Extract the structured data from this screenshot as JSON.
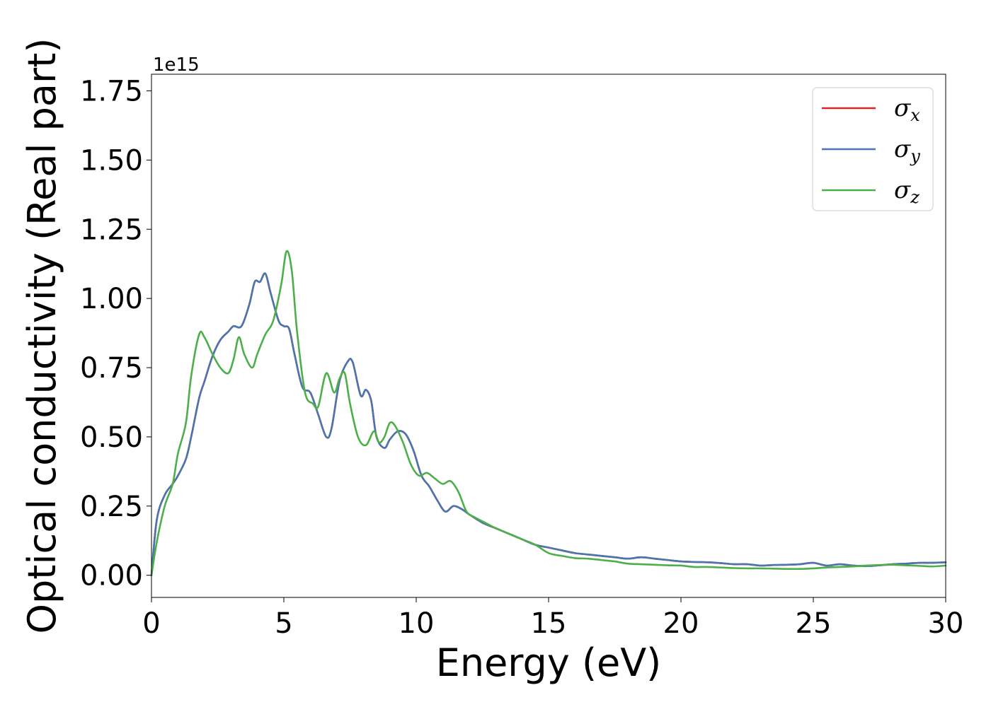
{
  "chart_data": {
    "type": "line",
    "xlabel": "Energy (eV)",
    "ylabel": "Optical conductivity (Real part)",
    "y_offset_text": "1e15",
    "xlim": [
      0,
      30
    ],
    "ylim": [
      -0.08,
      1.81
    ],
    "x_ticks": [
      0,
      5,
      10,
      15,
      20,
      25,
      30
    ],
    "x_tick_labels": [
      "0",
      "5",
      "10",
      "15",
      "20",
      "25",
      "30"
    ],
    "y_ticks": [
      0.0,
      0.25,
      0.5,
      0.75,
      1.0,
      1.25,
      1.5,
      1.75
    ],
    "y_tick_labels": [
      "0.00",
      "0.25",
      "0.50",
      "0.75",
      "1.00",
      "1.25",
      "1.50",
      "1.75"
    ],
    "grid": false,
    "legend_position": "top-right",
    "series": [
      {
        "name": "σx",
        "legend_symbol": "σ",
        "legend_subscript": "x",
        "color": "#d62728",
        "x": [
          0,
          0.2,
          0.5,
          0.8,
          1.0,
          1.3,
          1.5,
          1.8,
          2.0,
          2.3,
          2.6,
          2.9,
          3.1,
          3.4,
          3.7,
          3.9,
          4.1,
          4.3,
          4.5,
          4.8,
          5.0,
          5.2,
          5.4,
          5.7,
          6.0,
          6.3,
          6.6,
          6.8,
          7.1,
          7.4,
          7.6,
          7.9,
          8.1,
          8.3,
          8.5,
          8.8,
          9.0,
          9.3,
          9.6,
          9.9,
          10.2,
          10.5,
          10.8,
          11.1,
          11.4,
          11.7,
          12.0,
          12.5,
          13.0,
          13.5,
          14.0,
          14.5,
          15.0,
          15.5,
          16.0,
          16.5,
          17.0,
          17.5,
          18.0,
          18.5,
          19.0,
          19.5,
          20.0,
          20.5,
          21.0,
          21.5,
          22.0,
          22.5,
          23.0,
          23.5,
          24.0,
          24.5,
          25.0,
          25.5,
          26.0,
          26.5,
          27.0,
          27.5,
          28.0,
          28.5,
          29.0,
          29.5,
          30.0
        ],
        "y": [
          0,
          0.2,
          0.29,
          0.33,
          0.36,
          0.42,
          0.5,
          0.64,
          0.7,
          0.79,
          0.85,
          0.88,
          0.9,
          0.9,
          0.98,
          1.06,
          1.06,
          1.09,
          1.02,
          0.92,
          0.9,
          0.89,
          0.8,
          0.68,
          0.66,
          0.58,
          0.5,
          0.53,
          0.7,
          0.77,
          0.77,
          0.65,
          0.67,
          0.63,
          0.5,
          0.46,
          0.49,
          0.52,
          0.51,
          0.45,
          0.36,
          0.32,
          0.27,
          0.23,
          0.25,
          0.24,
          0.22,
          0.19,
          0.17,
          0.15,
          0.13,
          0.11,
          0.1,
          0.09,
          0.08,
          0.075,
          0.07,
          0.065,
          0.06,
          0.065,
          0.06,
          0.055,
          0.05,
          0.048,
          0.047,
          0.044,
          0.04,
          0.04,
          0.035,
          0.037,
          0.038,
          0.04,
          0.045,
          0.035,
          0.04,
          0.035,
          0.033,
          0.036,
          0.04,
          0.042,
          0.045,
          0.045,
          0.047
        ]
      },
      {
        "name": "σy",
        "legend_symbol": "σ",
        "legend_subscript": "y",
        "color": "#4a76b0",
        "x": [
          0,
          0.2,
          0.5,
          0.8,
          1.0,
          1.3,
          1.5,
          1.8,
          2.0,
          2.3,
          2.6,
          2.9,
          3.1,
          3.4,
          3.7,
          3.9,
          4.1,
          4.3,
          4.5,
          4.8,
          5.0,
          5.2,
          5.4,
          5.7,
          6.0,
          6.3,
          6.6,
          6.8,
          7.1,
          7.4,
          7.6,
          7.9,
          8.1,
          8.3,
          8.5,
          8.8,
          9.0,
          9.3,
          9.6,
          9.9,
          10.2,
          10.5,
          10.8,
          11.1,
          11.4,
          11.7,
          12.0,
          12.5,
          13.0,
          13.5,
          14.0,
          14.5,
          15.0,
          15.5,
          16.0,
          16.5,
          17.0,
          17.5,
          18.0,
          18.5,
          19.0,
          19.5,
          20.0,
          20.5,
          21.0,
          21.5,
          22.0,
          22.5,
          23.0,
          23.5,
          24.0,
          24.5,
          25.0,
          25.5,
          26.0,
          26.5,
          27.0,
          27.5,
          28.0,
          28.5,
          29.0,
          29.5,
          30.0
        ],
        "y": [
          0,
          0.2,
          0.29,
          0.33,
          0.36,
          0.42,
          0.5,
          0.64,
          0.7,
          0.79,
          0.85,
          0.88,
          0.9,
          0.9,
          0.98,
          1.06,
          1.06,
          1.09,
          1.02,
          0.92,
          0.9,
          0.89,
          0.8,
          0.68,
          0.66,
          0.58,
          0.5,
          0.53,
          0.7,
          0.77,
          0.77,
          0.65,
          0.67,
          0.63,
          0.5,
          0.46,
          0.49,
          0.52,
          0.51,
          0.45,
          0.36,
          0.32,
          0.27,
          0.23,
          0.25,
          0.24,
          0.22,
          0.19,
          0.17,
          0.15,
          0.13,
          0.11,
          0.1,
          0.09,
          0.08,
          0.075,
          0.07,
          0.065,
          0.06,
          0.065,
          0.06,
          0.055,
          0.05,
          0.048,
          0.047,
          0.044,
          0.04,
          0.04,
          0.035,
          0.037,
          0.038,
          0.04,
          0.045,
          0.035,
          0.04,
          0.035,
          0.033,
          0.036,
          0.04,
          0.042,
          0.045,
          0.045,
          0.047
        ]
      },
      {
        "name": "σz",
        "legend_symbol": "σ",
        "legend_subscript": "z",
        "color": "#4daf4a",
        "x": [
          0,
          0.2,
          0.5,
          0.8,
          1.0,
          1.3,
          1.5,
          1.8,
          2.0,
          2.3,
          2.6,
          2.9,
          3.1,
          3.3,
          3.5,
          3.8,
          4.0,
          4.3,
          4.6,
          4.9,
          5.1,
          5.3,
          5.5,
          5.8,
          6.1,
          6.3,
          6.6,
          6.9,
          7.1,
          7.3,
          7.5,
          7.8,
          8.1,
          8.4,
          8.6,
          8.8,
          9.0,
          9.2,
          9.5,
          9.8,
          10.1,
          10.4,
          10.7,
          11.0,
          11.3,
          11.6,
          11.9,
          12.2,
          12.6,
          13.0,
          13.5,
          14.0,
          14.5,
          15.0,
          15.5,
          16.0,
          16.5,
          17.0,
          17.5,
          18.0,
          18.5,
          19.0,
          19.5,
          20.0,
          20.5,
          21.0,
          21.5,
          22.0,
          22.5,
          23.0,
          23.5,
          24.0,
          24.5,
          25.0,
          25.5,
          26.0,
          26.5,
          27.0,
          27.5,
          28.0,
          28.5,
          29.0,
          29.5,
          30.0
        ],
        "y": [
          0,
          0.12,
          0.25,
          0.33,
          0.44,
          0.55,
          0.72,
          0.87,
          0.86,
          0.8,
          0.75,
          0.73,
          0.78,
          0.86,
          0.8,
          0.75,
          0.8,
          0.87,
          0.92,
          1.05,
          1.17,
          1.1,
          0.88,
          0.66,
          0.62,
          0.61,
          0.73,
          0.66,
          0.71,
          0.73,
          0.62,
          0.5,
          0.47,
          0.52,
          0.48,
          0.5,
          0.55,
          0.54,
          0.48,
          0.4,
          0.36,
          0.37,
          0.35,
          0.33,
          0.34,
          0.3,
          0.23,
          0.21,
          0.19,
          0.17,
          0.15,
          0.13,
          0.11,
          0.08,
          0.07,
          0.062,
          0.06,
          0.055,
          0.05,
          0.042,
          0.04,
          0.038,
          0.036,
          0.035,
          0.03,
          0.03,
          0.028,
          0.026,
          0.025,
          0.025,
          0.024,
          0.023,
          0.023,
          0.025,
          0.028,
          0.03,
          0.032,
          0.035,
          0.037,
          0.038,
          0.036,
          0.034,
          0.032,
          0.035
        ]
      }
    ]
  }
}
